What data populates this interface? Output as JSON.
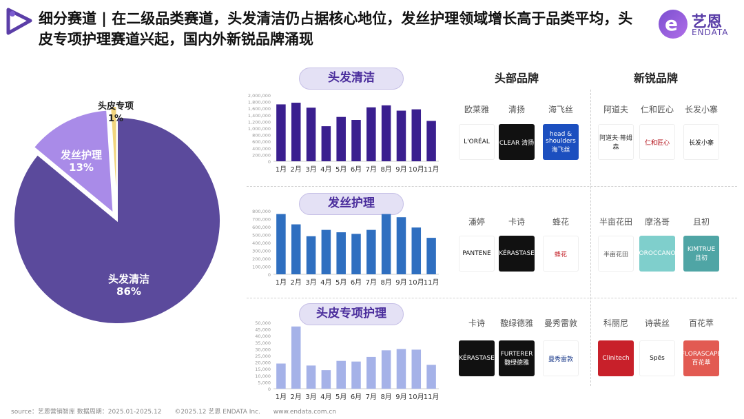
{
  "header": {
    "title": "细分赛道 | 在二级品类赛道，头发清洁仍占据核心地位，发丝护理领域增长高于品类平均，头皮专项护理赛道兴起，国内外新锐品牌涌现",
    "logo_cn": "艺恩",
    "logo_en": "ENDATA"
  },
  "columns": {
    "top_brands": "头部品牌",
    "new_brands": "新锐品牌"
  },
  "pie": {
    "chart_data": {
      "type": "pie",
      "slices": [
        {
          "name": "头发清洁",
          "value": 86,
          "label": "86%",
          "color": "#5b4a9c"
        },
        {
          "name": "发丝护理",
          "value": 13,
          "label": "13%",
          "color": "#a98be8"
        },
        {
          "name": "头皮专项",
          "value": 1,
          "label": "1%",
          "color": "#f2d57e"
        }
      ]
    }
  },
  "sections": [
    {
      "label": "头发清洁",
      "chart_data": {
        "type": "bar",
        "categories": [
          "1月",
          "2月",
          "3月",
          "4月",
          "5月",
          "6月",
          "7月",
          "8月",
          "9月",
          "10月",
          "11月"
        ],
        "values": [
          1720000,
          1770000,
          1620000,
          1060000,
          1340000,
          1250000,
          1630000,
          1690000,
          1530000,
          1570000,
          1220000
        ],
        "yticks": [
          "2,000,000",
          "1,800,000",
          "1,600,000",
          "1,400,000",
          "1,200,000",
          "1,000,000",
          "800,000",
          "600,000",
          "400,000",
          "200,000",
          "0"
        ],
        "ylim": [
          0,
          2000000
        ],
        "color": "#3a1f8f"
      },
      "top_brands": [
        {
          "name": "欧莱雅",
          "logo_text": "L'ORÉAL",
          "bg": "#ffffff",
          "fg": "#111111"
        },
        {
          "name": "清扬",
          "logo_text": "CLEAR 清扬",
          "bg": "#111111",
          "fg": "#ffffff"
        },
        {
          "name": "海飞丝",
          "logo_text": "head & shoulders 海飞丝",
          "bg": "#1c4fbf",
          "fg": "#ffffff"
        }
      ],
      "new_brands": [
        {
          "name": "阿道夫",
          "logo_text": "阿道夫·蒂姆森",
          "bg": "#ffffff",
          "fg": "#333333"
        },
        {
          "name": "仁和匠心",
          "logo_text": "仁和匠心",
          "bg": "#ffffff",
          "fg": "#b3121a"
        },
        {
          "name": "长发小寨",
          "logo_text": "长发小寨",
          "bg": "#ffffff",
          "fg": "#111111"
        }
      ]
    },
    {
      "label": "发丝护理",
      "chart_data": {
        "type": "bar",
        "categories": [
          "1月",
          "2月",
          "3月",
          "4月",
          "5月",
          "6月",
          "7月",
          "8月",
          "9月",
          "10月",
          "11月"
        ],
        "values": [
          760000,
          630000,
          480000,
          560000,
          530000,
          510000,
          560000,
          760000,
          720000,
          590000,
          460000
        ],
        "yticks": [
          "800,000",
          "700,000",
          "600,000",
          "500,000",
          "400,000",
          "300,000",
          "200,000",
          "100,000",
          "0"
        ],
        "ylim": [
          0,
          800000
        ],
        "color": "#2f6fc0"
      },
      "top_brands": [
        {
          "name": "潘婷",
          "logo_text": "PANTENE",
          "bg": "#ffffff",
          "fg": "#111111"
        },
        {
          "name": "卡诗",
          "logo_text": "KÉRASTASE",
          "bg": "#111111",
          "fg": "#ffffff"
        },
        {
          "name": "蜂花",
          "logo_text": "蜂花",
          "bg": "#ffffff",
          "fg": "#c0141c"
        }
      ],
      "new_brands": [
        {
          "name": "半亩花田",
          "logo_text": "半亩花田",
          "bg": "#ffffff",
          "fg": "#555555"
        },
        {
          "name": "摩洛哥",
          "logo_text": "MOROCCANOIL",
          "bg": "#7fcfcc",
          "fg": "#ffffff"
        },
        {
          "name": "且初",
          "logo_text": "KIMTRUE 且初",
          "bg": "#4fa5a5",
          "fg": "#ffffff"
        }
      ]
    },
    {
      "label": "头皮专项护理",
      "chart_data": {
        "type": "bar",
        "categories": [
          "1月",
          "2月",
          "3月",
          "4月",
          "5月",
          "6月",
          "7月",
          "8月",
          "9月",
          "10月",
          "11月"
        ],
        "values": [
          19000,
          47000,
          17500,
          14000,
          21000,
          20500,
          24000,
          29000,
          30000,
          29500,
          18000
        ],
        "yticks": [
          "50,000",
          "45,000",
          "40,000",
          "35,000",
          "30,000",
          "25,000",
          "20,000",
          "15,000",
          "10,000",
          "5,000",
          "0"
        ],
        "ylim": [
          0,
          50000
        ],
        "color": "#a5b2e8"
      },
      "top_brands": [
        {
          "name": "卡诗",
          "logo_text": "KÉRASTASE",
          "bg": "#111111",
          "fg": "#ffffff"
        },
        {
          "name": "馥绿德雅",
          "logo_text": "FURTERER 馥绿德雅",
          "bg": "#111111",
          "fg": "#ffffff"
        },
        {
          "name": "曼秀雷敦",
          "logo_text": "曼秀雷敦",
          "bg": "#ffffff",
          "fg": "#1a3a8a"
        }
      ],
      "new_brands": [
        {
          "name": "科丽尼",
          "logo_text": "Clinitech",
          "bg": "#c8202a",
          "fg": "#ffffff"
        },
        {
          "name": "诗裴丝",
          "logo_text": "Spēs",
          "bg": "#ffffff",
          "fg": "#111111"
        },
        {
          "name": "百花萃",
          "logo_text": "FLORASCAPE 百花萃",
          "bg": "#e25a52",
          "fg": "#ffffff"
        }
      ]
    }
  ],
  "footer": {
    "source": "source：艺恩营销智库   数据周期：2025.01-2025.12",
    "copyright": "©2025.12 艺恩 ENDATA Inc.",
    "website": "www.endata.com.cn"
  }
}
